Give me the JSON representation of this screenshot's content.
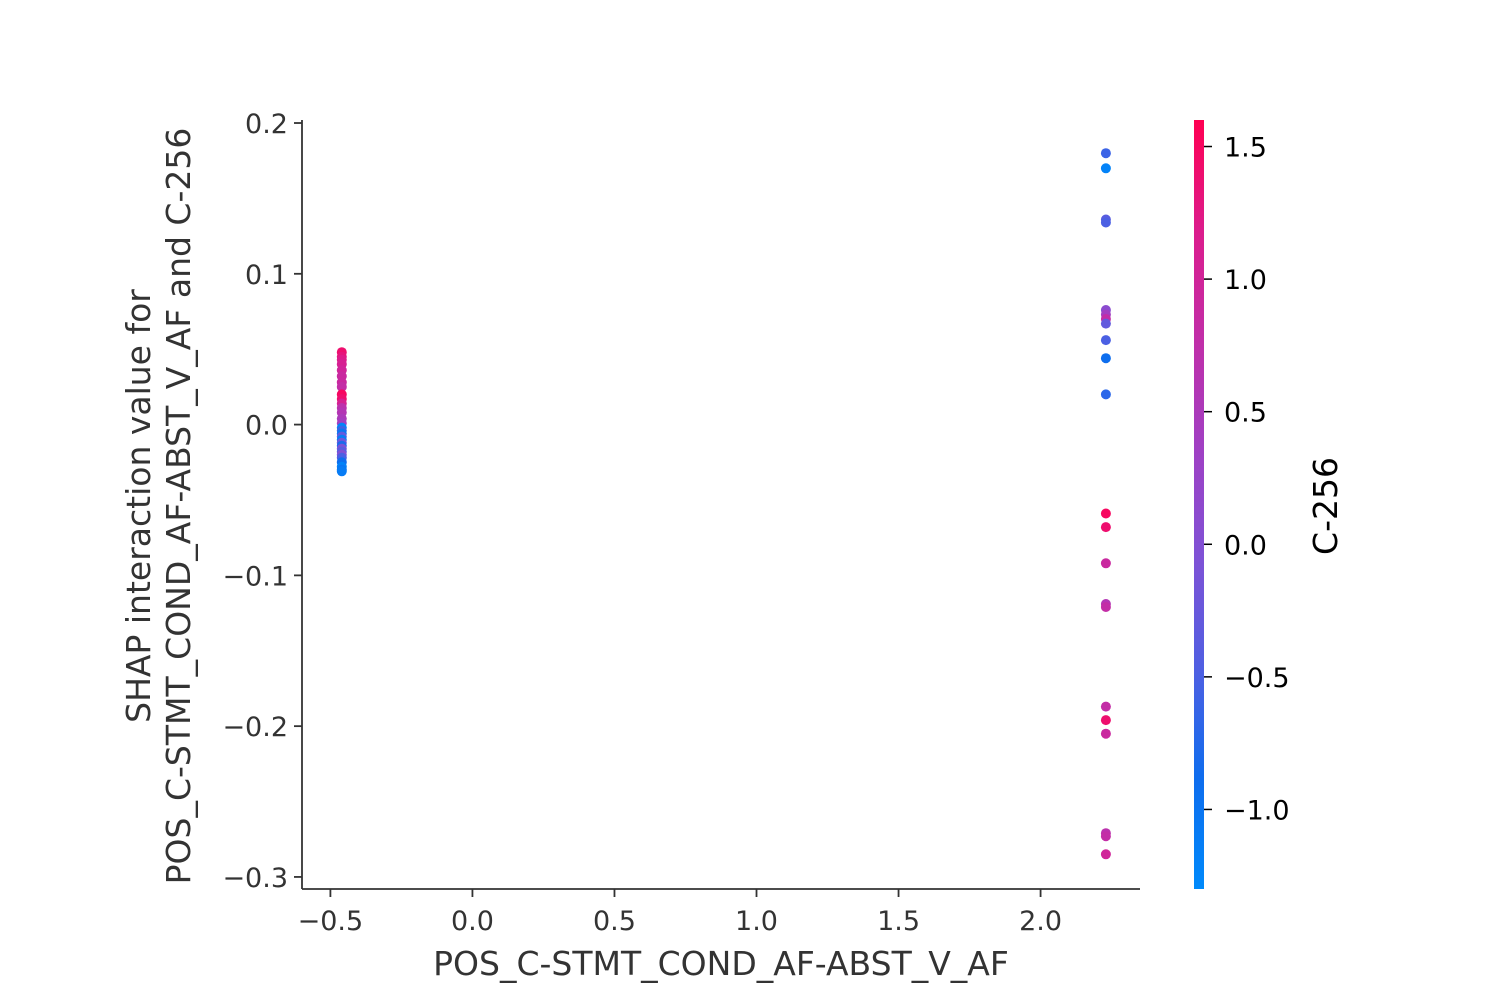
{
  "chart_data": {
    "type": "scatter",
    "xlabel": "POS_C-STMT_COND_AF-ABST_V_AF",
    "ylabel_lines": [
      "SHAP interaction value for",
      "POS_C-STMT_COND_AF-ABST_V_AF and C-256"
    ],
    "colorbar_label": "C-256",
    "xlim": [
      -0.6,
      2.35
    ],
    "ylim": [
      -0.308,
      0.202
    ],
    "x_ticks": [
      -0.5,
      0.0,
      0.5,
      1.0,
      1.5,
      2.0
    ],
    "x_tick_labels": [
      "−0.5",
      "0.0",
      "0.5",
      "1.0",
      "1.5",
      "2.0"
    ],
    "y_ticks": [
      0.2,
      0.1,
      0.0,
      -0.1,
      -0.2,
      -0.3
    ],
    "y_tick_labels": [
      "0.2",
      "0.1",
      "0.0",
      "−0.1",
      "−0.2",
      "−0.3"
    ],
    "color_range": [
      -1.3,
      1.6
    ],
    "colorbar_ticks": [
      1.5,
      1.0,
      0.5,
      0.0,
      -0.5,
      -1.0
    ],
    "colorbar_tick_labels": [
      "1.5",
      "1.0",
      "0.5",
      "0.0",
      "−0.5",
      "−1.0"
    ],
    "colormap": [
      "#008afb",
      "#0e6dee",
      "#4f5fe2",
      "#7e52d6",
      "#a040c4",
      "#c12ea8",
      "#dc1c8c",
      "#ff0052"
    ],
    "points": [
      {
        "x": -0.46,
        "y": 0.048,
        "c": 1.4
      },
      {
        "x": -0.46,
        "y": 0.045,
        "c": 1.3
      },
      {
        "x": -0.46,
        "y": 0.043,
        "c": 1.2
      },
      {
        "x": -0.46,
        "y": 0.04,
        "c": 1.1
      },
      {
        "x": -0.46,
        "y": 0.036,
        "c": 1.0
      },
      {
        "x": -0.46,
        "y": 0.032,
        "c": 0.9
      },
      {
        "x": -0.46,
        "y": 0.028,
        "c": 0.9
      },
      {
        "x": -0.46,
        "y": 0.025,
        "c": 0.8
      },
      {
        "x": -0.46,
        "y": 0.02,
        "c": 1.5
      },
      {
        "x": -0.46,
        "y": 0.017,
        "c": 1.4
      },
      {
        "x": -0.46,
        "y": 0.014,
        "c": 1.1
      },
      {
        "x": -0.46,
        "y": 0.011,
        "c": 0.7
      },
      {
        "x": -0.46,
        "y": 0.008,
        "c": 0.6
      },
      {
        "x": -0.46,
        "y": 0.004,
        "c": 0.5
      },
      {
        "x": -0.46,
        "y": 0.001,
        "c": 0.4
      },
      {
        "x": -0.46,
        "y": -0.002,
        "c": -1.2
      },
      {
        "x": -0.46,
        "y": -0.004,
        "c": -0.6
      },
      {
        "x": -0.46,
        "y": -0.006,
        "c": -1.0
      },
      {
        "x": -0.46,
        "y": -0.008,
        "c": -0.3
      },
      {
        "x": -0.46,
        "y": -0.01,
        "c": -1.1
      },
      {
        "x": -0.46,
        "y": -0.012,
        "c": -0.2
      },
      {
        "x": -0.46,
        "y": -0.014,
        "c": -0.8
      },
      {
        "x": -0.46,
        "y": -0.016,
        "c": -0.1
      },
      {
        "x": -0.46,
        "y": -0.018,
        "c": -0.4
      },
      {
        "x": -0.46,
        "y": -0.02,
        "c": 0.0
      },
      {
        "x": -0.46,
        "y": -0.022,
        "c": -0.5
      },
      {
        "x": -0.46,
        "y": -0.025,
        "c": -0.9
      },
      {
        "x": -0.46,
        "y": -0.028,
        "c": -1.2
      },
      {
        "x": -0.46,
        "y": -0.03,
        "c": -1.0
      },
      {
        "x": -0.46,
        "y": -0.031,
        "c": -1.1
      },
      {
        "x": 2.23,
        "y": 0.18,
        "c": -0.6
      },
      {
        "x": 2.23,
        "y": 0.17,
        "c": -1.2
      },
      {
        "x": 2.23,
        "y": 0.136,
        "c": -0.4
      },
      {
        "x": 2.23,
        "y": 0.134,
        "c": -0.5
      },
      {
        "x": 2.23,
        "y": 0.076,
        "c": 0.1
      },
      {
        "x": 2.23,
        "y": 0.073,
        "c": 0.4
      },
      {
        "x": 2.23,
        "y": 0.07,
        "c": 0.8
      },
      {
        "x": 2.23,
        "y": 0.067,
        "c": -0.3
      },
      {
        "x": 2.23,
        "y": 0.056,
        "c": -0.5
      },
      {
        "x": 2.23,
        "y": 0.044,
        "c": -0.9
      },
      {
        "x": 2.23,
        "y": 0.02,
        "c": -0.7
      },
      {
        "x": 2.23,
        "y": -0.059,
        "c": 1.5
      },
      {
        "x": 2.23,
        "y": -0.068,
        "c": 1.4
      },
      {
        "x": 2.23,
        "y": -0.092,
        "c": 0.9
      },
      {
        "x": 2.23,
        "y": -0.119,
        "c": 0.6
      },
      {
        "x": 2.23,
        "y": -0.121,
        "c": 0.8
      },
      {
        "x": 2.23,
        "y": -0.187,
        "c": 0.8
      },
      {
        "x": 2.23,
        "y": -0.196,
        "c": 1.4
      },
      {
        "x": 2.23,
        "y": -0.205,
        "c": 0.9
      },
      {
        "x": 2.23,
        "y": -0.271,
        "c": 0.7
      },
      {
        "x": 2.23,
        "y": -0.273,
        "c": 0.8
      },
      {
        "x": 2.23,
        "y": -0.285,
        "c": 1.0
      }
    ]
  }
}
